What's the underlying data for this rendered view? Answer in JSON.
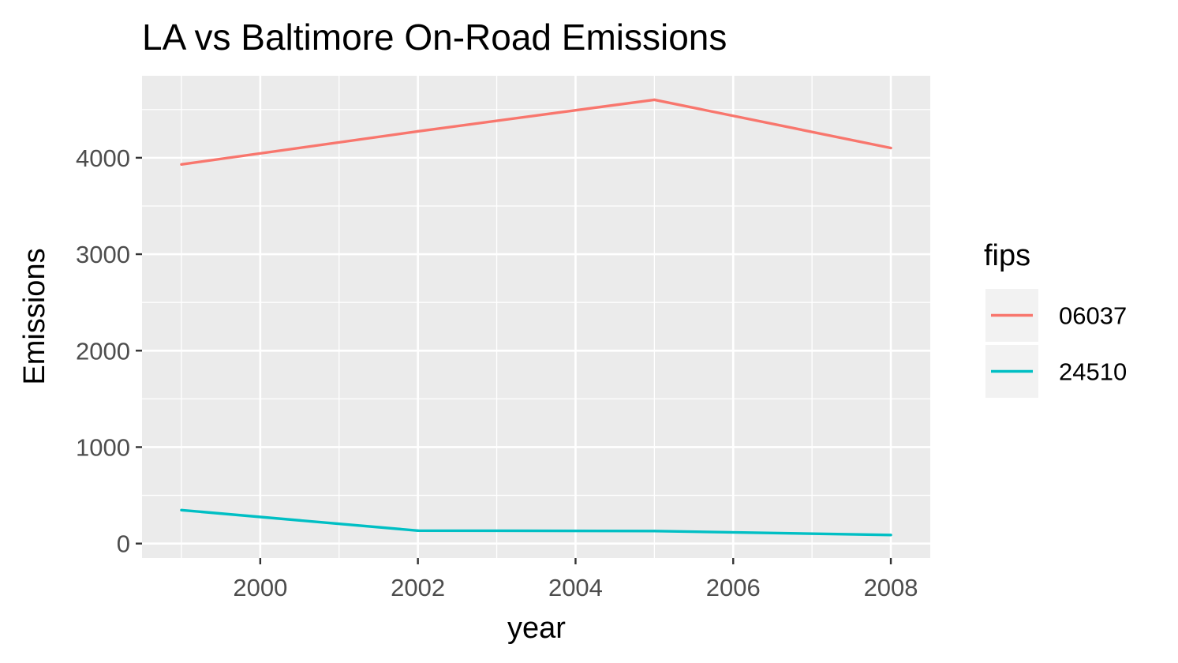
{
  "chart_data": {
    "type": "line",
    "title": "LA vs Baltimore On-Road Emissions",
    "xlabel": "year",
    "ylabel": "Emissions",
    "x": [
      1999,
      2002,
      2005,
      2008
    ],
    "xlim": [
      1998.5,
      2008.5
    ],
    "ylim": [
      -150,
      4850
    ],
    "x_ticks": [
      2000,
      2002,
      2004,
      2006,
      2008
    ],
    "y_ticks": [
      0,
      1000,
      2000,
      3000,
      4000
    ],
    "grid": true,
    "legend": {
      "title": "fips",
      "placement": "right"
    },
    "series": [
      {
        "name": "06037",
        "color": "#F8766D",
        "values": [
          3931,
          4274,
          4601,
          4101
        ]
      },
      {
        "name": "24510",
        "color": "#00BFC4",
        "values": [
          347,
          134,
          130,
          89
        ]
      }
    ]
  }
}
